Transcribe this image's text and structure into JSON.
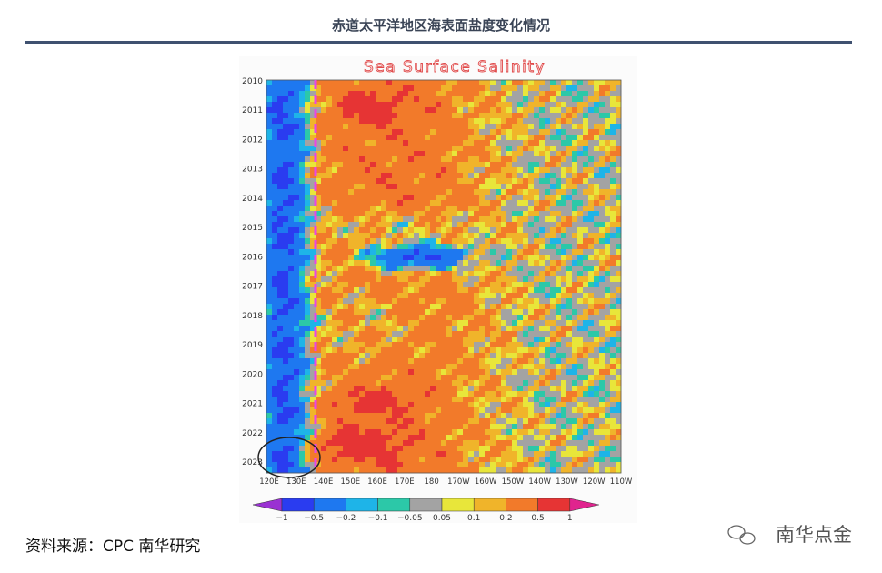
{
  "header": {
    "title": "赤道太平洋地区海表面盐度变化情况"
  },
  "figure": {
    "title": "Sea Surface Salinity",
    "y_labels": [
      "2010",
      "2011",
      "2012",
      "2013",
      "2014",
      "2015",
      "2016",
      "2017",
      "2018",
      "2019",
      "2020",
      "2021",
      "2022",
      "2023"
    ],
    "x_labels": [
      "120E",
      "130E",
      "140E",
      "150E",
      "160E",
      "170E",
      "180",
      "170W",
      "160W",
      "150W",
      "140W",
      "130W",
      "120W",
      "110W"
    ],
    "colorbar": {
      "labels": [
        "−1",
        "−0.5",
        "−0.2",
        "−0.1",
        "−0.05",
        "0.05",
        "0.1",
        "0.2",
        "0.5",
        "1"
      ],
      "colors": [
        "#9a32d2",
        "#2a3cf0",
        "#1e78f0",
        "#1eb4e8",
        "#2cc8a8",
        "#a3a3a3",
        "#e8e63a",
        "#f0b42a",
        "#f27a2a",
        "#e63434",
        "#e0248e"
      ]
    }
  },
  "footer": {
    "source": "资料来源：CPC  南华研究",
    "brand": "南华点金"
  }
}
